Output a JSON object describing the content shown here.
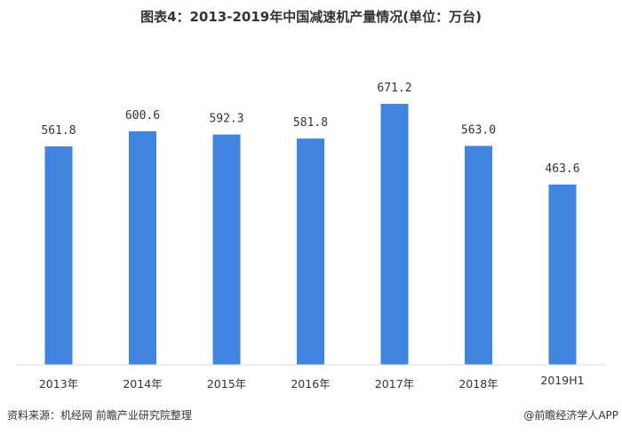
{
  "chart_data": {
    "type": "bar",
    "title": "图表4：2013-2019年中国减速机产量情况(单位：万台)",
    "categories": [
      "2013年",
      "2014年",
      "2015年",
      "2016年",
      "2017年",
      "2018年",
      "2019H1"
    ],
    "values": [
      561.8,
      600.6,
      592.3,
      581.8,
      671.2,
      563.0,
      463.6
    ],
    "data_labels": [
      "561.8",
      "600.6",
      "592.3",
      "581.8",
      "671.2",
      "563.0",
      "463.6"
    ],
    "xlabel": "",
    "ylabel": "",
    "ylim": [
      0,
      700
    ],
    "grid": false,
    "bar_color": "#3f85e0"
  },
  "footer": {
    "source": "资料来源：机经网 前瞻产业研究院整理",
    "credit": "@前瞻经济学人APP"
  },
  "watermark": "前瞻产业研究院"
}
